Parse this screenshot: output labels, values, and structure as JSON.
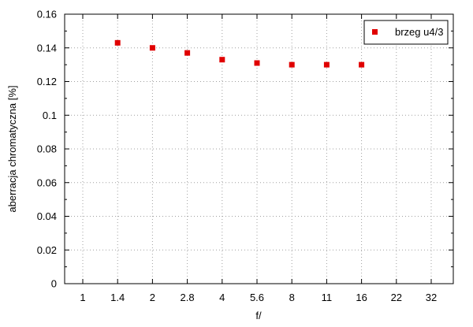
{
  "chart_data": {
    "type": "scatter",
    "xlabel": "f/",
    "ylabel": "aberracja chromatyczna [%]",
    "x_categories": [
      "1",
      "1.4",
      "2",
      "2.8",
      "4",
      "5.6",
      "8",
      "11",
      "16",
      "22",
      "32"
    ],
    "ylim": [
      0,
      0.16
    ],
    "y_ticks": [
      "0",
      "0.02",
      "0.04",
      "0.06",
      "0.08",
      "0.1",
      "0.12",
      "0.14",
      "0.16"
    ],
    "grid": true,
    "legend_position": "top-right",
    "series": [
      {
        "name": "brzeg u4/3",
        "color": "#e00000",
        "marker": "square",
        "points": [
          {
            "x": "1.4",
            "y": 0.143
          },
          {
            "x": "2",
            "y": 0.14
          },
          {
            "x": "2.8",
            "y": 0.137
          },
          {
            "x": "4",
            "y": 0.133
          },
          {
            "x": "5.6",
            "y": 0.131
          },
          {
            "x": "8",
            "y": 0.13
          },
          {
            "x": "11",
            "y": 0.13
          },
          {
            "x": "16",
            "y": 0.13
          }
        ]
      }
    ]
  }
}
